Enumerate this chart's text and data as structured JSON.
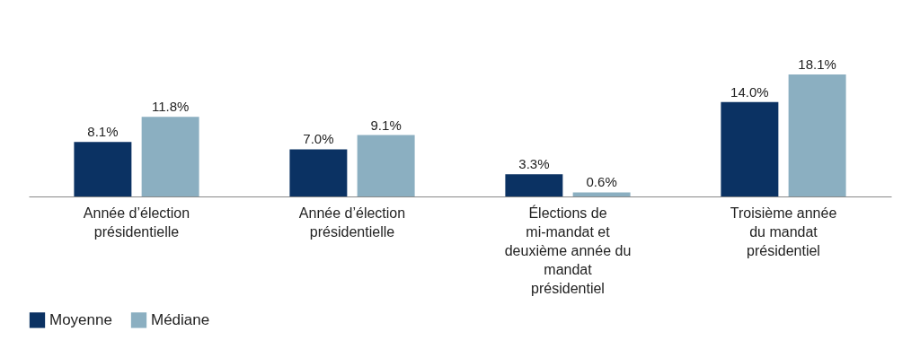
{
  "chart_data": {
    "type": "bar",
    "categories": [
      "Année d’élection présidentielle",
      "Année d’élection présidentielle",
      "Élections de mi-mandat et deuxième année du mandat présidentiel",
      "Troisième année du mandat présidentiel"
    ],
    "series": [
      {
        "name": "Moyenne",
        "color": "#0b3263",
        "values": [
          8.1,
          7.0,
          3.3,
          14.0
        ],
        "value_labels": [
          "8.1%",
          "7.0%",
          "3.3%",
          "14.0%"
        ]
      },
      {
        "name": "Médiane",
        "color": "#8bafc1",
        "values": [
          11.8,
          9.1,
          0.6,
          18.1
        ],
        "value_labels": [
          "11.8%",
          "9.1%",
          "0.6%",
          "18.1%"
        ]
      }
    ],
    "legend": "bottom",
    "grid": false
  }
}
